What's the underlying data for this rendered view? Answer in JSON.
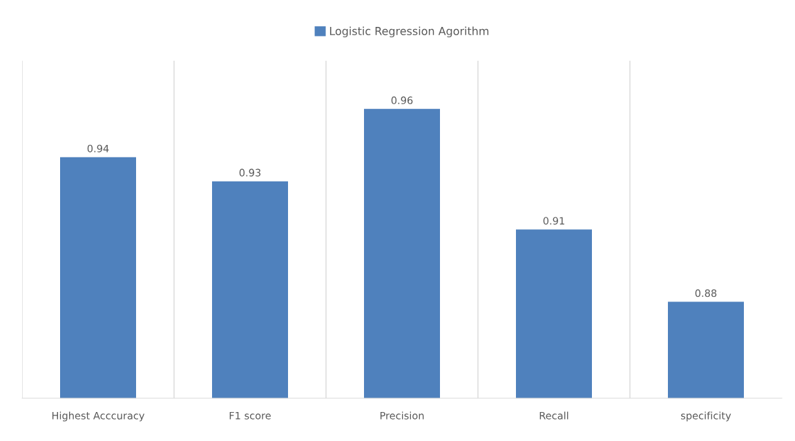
{
  "chart_data": {
    "type": "bar",
    "categories": [
      "Highest Acccuracy",
      "F1 score",
      "Precision",
      "Recall",
      "specificity"
    ],
    "series": [
      {
        "name": "Logistic Regression Agorithm",
        "color": "#4f81bd",
        "values": [
          0.94,
          0.93,
          0.96,
          0.91,
          0.88
        ]
      }
    ],
    "ylim": [
      0.84,
      0.98
    ],
    "tick_labels": "x",
    "data_labels": true,
    "grid": "x",
    "legend": "top"
  }
}
